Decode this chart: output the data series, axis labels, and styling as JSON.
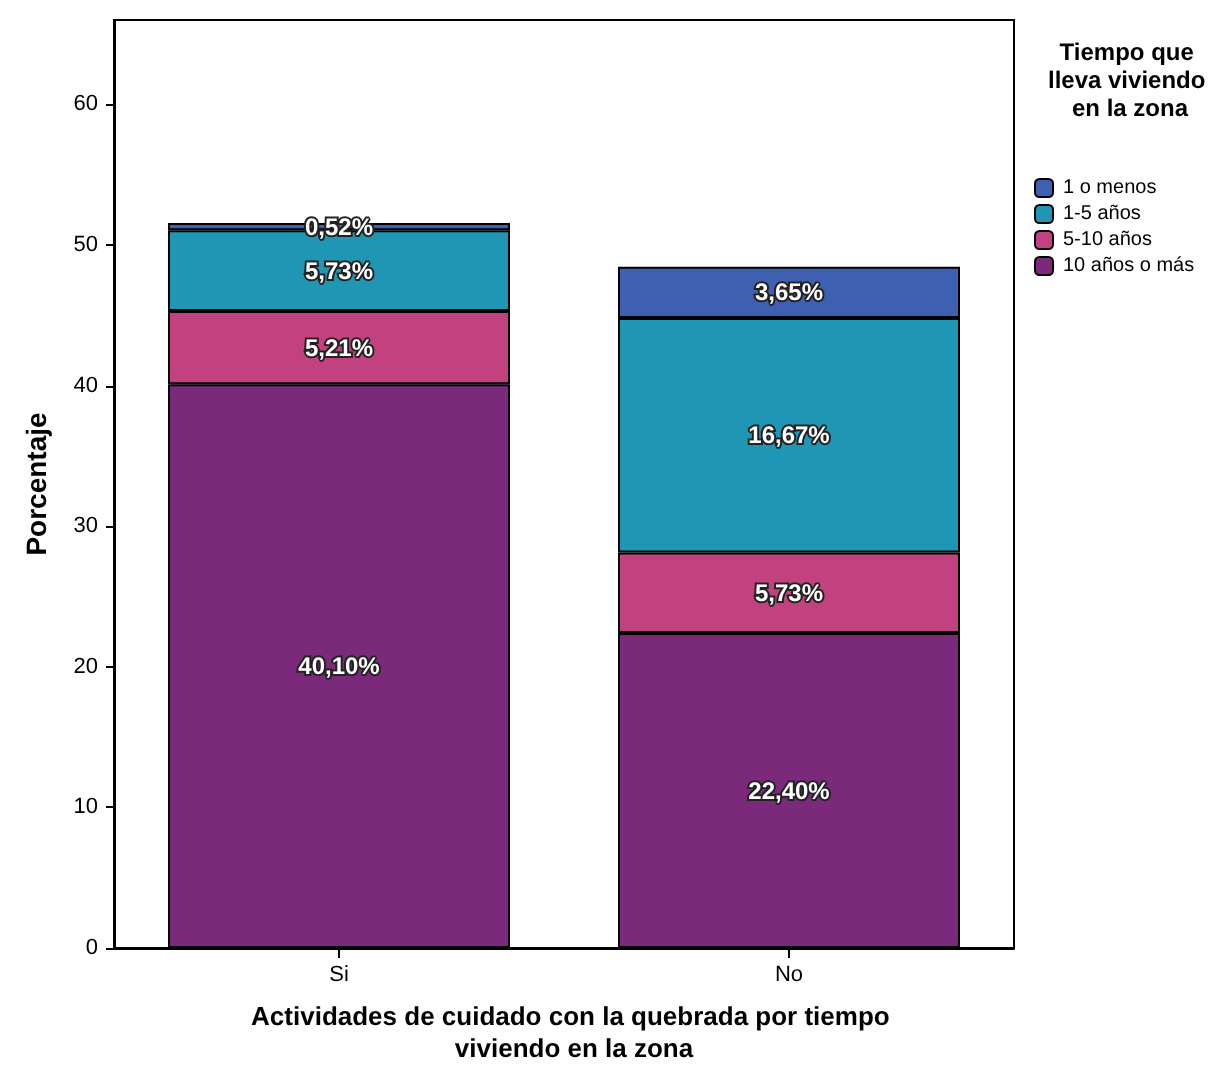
{
  "chart_data": {
    "type": "bar",
    "stacked": true,
    "xlabel": "Actividades de cuidado con la quebrada por tiempo viviendo en la zona",
    "ylabel": "Porcentaje",
    "legend_title": "Tiempo que lleva viviendo en la zona",
    "categories": [
      "Si",
      "No"
    ],
    "series": [
      {
        "name": "10 años o más",
        "color": "#7b2a7b",
        "values": [
          40.1,
          22.4
        ],
        "value_labels": [
          "40,10%",
          "22,40%"
        ]
      },
      {
        "name": "5-10 años",
        "color": "#c2417f",
        "values": [
          5.21,
          5.73
        ],
        "value_labels": [
          "5,21%",
          "5,73%"
        ]
      },
      {
        "name": "1-5 años",
        "color": "#1f97b4",
        "values": [
          5.73,
          16.67
        ],
        "value_labels": [
          "5,73%",
          "16,67%"
        ]
      },
      {
        "name": "1 o menos",
        "color": "#3f5fb0",
        "values": [
          0.52,
          3.65
        ],
        "value_labels": [
          "0,52%",
          "3,65%"
        ]
      }
    ],
    "ylim": [
      0,
      66
    ],
    "yticks": [
      0,
      10,
      20,
      30,
      40,
      50,
      60
    ],
    "grid": false,
    "legend": "right"
  }
}
